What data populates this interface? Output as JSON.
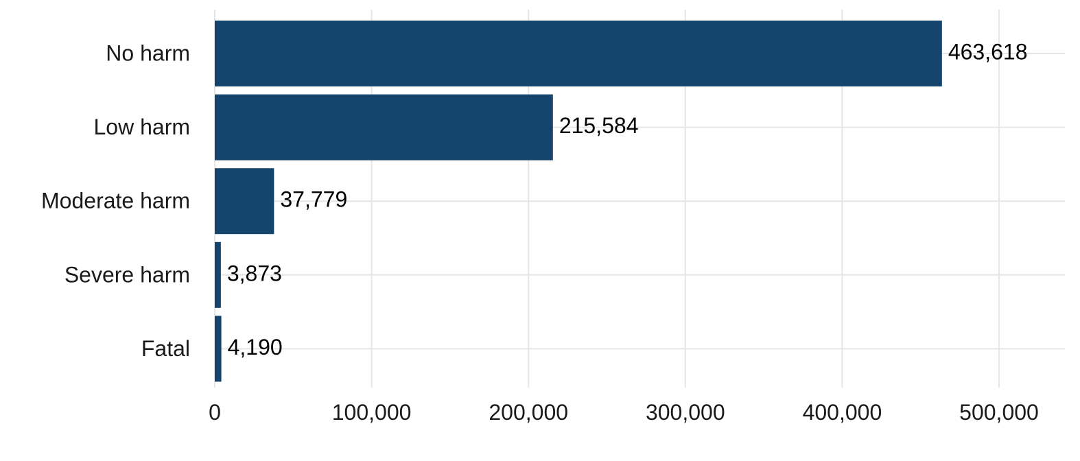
{
  "chart_data": {
    "type": "bar",
    "orientation": "horizontal",
    "categories": [
      "No harm",
      "Low harm",
      "Moderate harm",
      "Severe harm",
      "Fatal"
    ],
    "values": [
      463618,
      215584,
      37779,
      3873,
      4190
    ],
    "value_labels": [
      "463,618",
      "215,584",
      "37,779",
      "3,873",
      "4,190"
    ],
    "x_ticks": [
      0,
      100000,
      200000,
      300000,
      400000,
      500000
    ],
    "x_tick_labels": [
      "0",
      "100,000",
      "200,000",
      "300,000",
      "400,000",
      "500,000"
    ],
    "xlim": [
      0,
      540000
    ],
    "grid": true,
    "legend": "none",
    "bar_color": "#15446c",
    "title": "",
    "xlabel": "",
    "ylabel": ""
  }
}
